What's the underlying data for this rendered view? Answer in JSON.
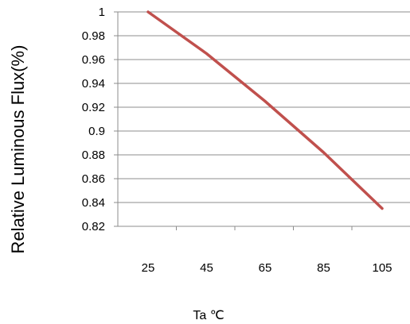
{
  "chart_data": {
    "type": "line",
    "xlabel": "Ta ℃",
    "ylabel": "Relative Luminous Flux(%)",
    "x_ticks": [
      "25",
      "45",
      "65",
      "85",
      "105"
    ],
    "y_ticks": [
      "1",
      "0.98",
      "0.96",
      "0.94",
      "0.92",
      "0.9",
      "0.88",
      "0.86",
      "0.84",
      "0.82"
    ],
    "xlim": [
      25,
      105
    ],
    "ylim": [
      0.82,
      1.0
    ],
    "grid": "horizontal",
    "legend": "none",
    "series": [
      {
        "color": "#C0504D",
        "x": [
          25,
          45,
          65,
          85,
          105
        ],
        "y": [
          1.0,
          0.965,
          0.925,
          0.882,
          0.835
        ]
      }
    ]
  }
}
